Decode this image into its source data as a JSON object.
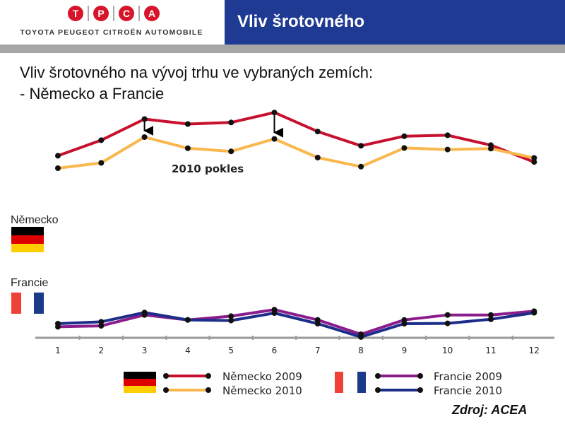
{
  "header": {
    "logo_letters": [
      "T",
      "P",
      "C",
      "A"
    ],
    "logo_subtitle": "TOYOTA PEUGEOT CITROËN AUTOMOBILE",
    "title": "Vliv šrotovného"
  },
  "subtitle": {
    "line1": "Vliv šrotovného na vývoj trhu ve vybraných zemích:",
    "line2": "- Německo a Francie"
  },
  "source": "Zdroj: ACEA",
  "chart_data": {
    "type": "line",
    "title": "",
    "xlabel": "",
    "ylabel": "",
    "categories": [
      1,
      2,
      3,
      4,
      5,
      6,
      7,
      8,
      9,
      10,
      11,
      12
    ],
    "annotation": "2010 pokles",
    "annotation_arrows_at": [
      3,
      6
    ],
    "group_labels": [
      "Německo",
      "Francie"
    ],
    "grid": false,
    "legend_position": "bottom",
    "series": [
      {
        "name": "Německo 2009",
        "group": "Německo",
        "color": "#c8102e",
        "values": [
          8.4,
          8.9,
          9.58,
          9.42,
          9.47,
          9.79,
          9.18,
          8.72,
          9.03,
          9.06,
          8.74,
          8.2
        ]
      },
      {
        "name": "Německo 2010",
        "group": "Německo",
        "color": "#f9b74e",
        "values": [
          8.0,
          8.17,
          9.0,
          8.64,
          8.54,
          8.94,
          8.34,
          8.05,
          8.65,
          8.6,
          8.63,
          8.33
        ]
      },
      {
        "name": "Francie 2009",
        "group": "Francie",
        "color": "#8a1c8c",
        "values": [
          2.9,
          2.93,
          3.28,
          3.12,
          3.24,
          3.45,
          3.12,
          2.66,
          3.12,
          3.28,
          3.28,
          3.4
        ]
      },
      {
        "name": "Francie 2010",
        "group": "Francie",
        "color": "#1c2d8a",
        "values": [
          3.0,
          3.06,
          3.36,
          3.12,
          3.1,
          3.34,
          3.0,
          2.57,
          3.0,
          3.01,
          3.14,
          3.35
        ]
      }
    ]
  }
}
